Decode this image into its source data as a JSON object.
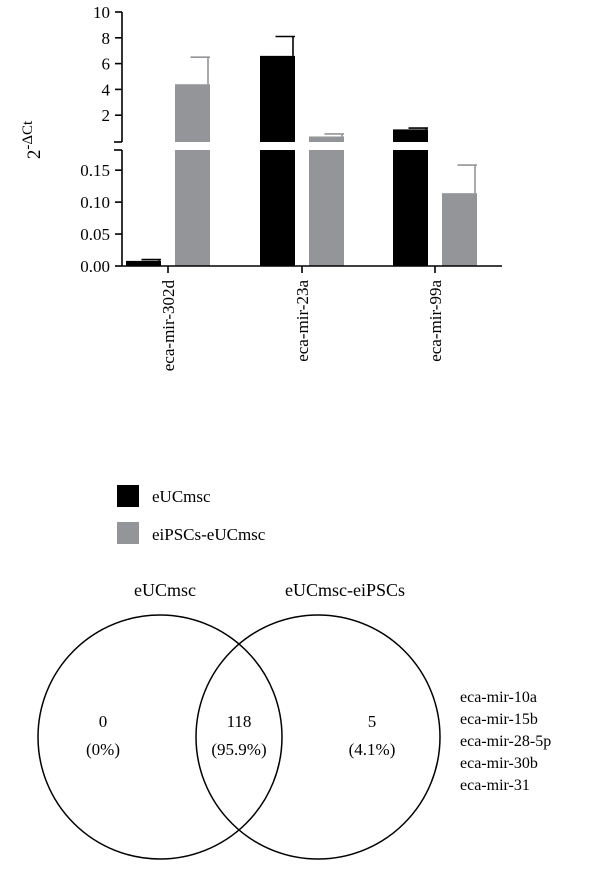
{
  "chart_data": [
    {
      "type": "bar",
      "ylabel": "2-ΔCt",
      "ylabel_base": "2",
      "ylabel_exp": "-ΔCt",
      "categories": [
        "eca-mir-302d",
        "eca-mir-23a",
        "eca-mir-99a"
      ],
      "y_axis": "broken",
      "ylim_lower": [
        0,
        0.18
      ],
      "ylim_upper": [
        0,
        10
      ],
      "yticks_lower": [
        "0.00",
        "0.05",
        "0.10",
        "0.15"
      ],
      "yticks_upper": [
        "2",
        "4",
        "6",
        "8",
        "10"
      ],
      "yticks_lower_values": [
        0,
        0.05,
        0.1,
        0.15
      ],
      "yticks_upper_values": [
        2,
        4,
        6,
        8,
        10
      ],
      "series": [
        {
          "name": "eUCmsc",
          "color": "#000000",
          "values": [
            0.008,
            6.6,
            0.9
          ],
          "errors": [
            0.002,
            1.5,
            0.1
          ]
        },
        {
          "name": "eiPSCs-eUCmsc",
          "color": "#939598",
          "values": [
            4.4,
            0.35,
            0.114
          ],
          "errors": [
            2.1,
            0.2,
            0.044
          ]
        }
      ],
      "legend": {
        "position": "below",
        "items": [
          {
            "label": "eUCmsc",
            "color": "#000000"
          },
          {
            "label": "eiPSCs-eUCmsc",
            "color": "#939598"
          }
        ]
      }
    }
  ],
  "venn": {
    "left_title": "eUCmsc",
    "right_title": "eUCmsc-eiPSCs",
    "left_only_count": "0",
    "left_only_pct": "(0%)",
    "overlap_count": "118",
    "overlap_pct": "(95.9%)",
    "right_only_count": "5",
    "right_only_pct": "(4.1%)",
    "right_only_genes": [
      "eca-mir-10a",
      "eca-mir-15b",
      "eca-mir-28-5p",
      "eca-mir-30b",
      "eca-mir-31"
    ]
  }
}
